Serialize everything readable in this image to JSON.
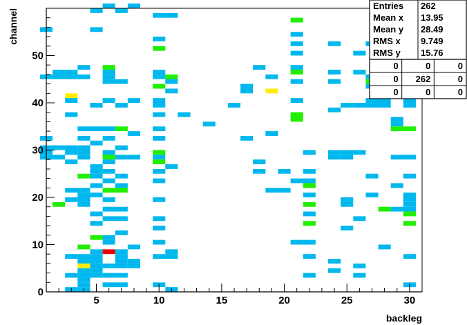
{
  "chart_data": {
    "type": "heatmap",
    "title": "",
    "xlabel": "backleg",
    "ylabel": "channel",
    "xlim": [
      1,
      31
    ],
    "ylim": [
      0,
      60
    ],
    "x_ticks": [
      5,
      10,
      15,
      20,
      25,
      30
    ],
    "y_ticks": [
      0,
      10,
      20,
      30,
      40,
      50
    ],
    "bin_width_x": 1,
    "bin_height_y": 1,
    "colors": {
      "low": "#00b8ee",
      "mid": "#22ee00",
      "high": "#ffee00",
      "max": "#ee0000"
    },
    "stats": {
      "entries_label": "Entries",
      "entries_value": "262",
      "rows": [
        {
          "label": "Mean x",
          "value": "13.95"
        },
        {
          "label": "Mean y",
          "value": "28.49"
        },
        {
          "label": "RMS x",
          "value": "9.749"
        },
        {
          "label": "RMS y",
          "value": "15.76"
        }
      ],
      "grid": [
        [
          "0",
          "0",
          "0"
        ],
        [
          "0",
          "262",
          "0"
        ],
        [
          "0",
          "0",
          "0"
        ]
      ]
    },
    "cells": [
      [
        1,
        32,
        "low"
      ],
      [
        1,
        30,
        "low"
      ],
      [
        1,
        29,
        "low"
      ],
      [
        1,
        28,
        "low"
      ],
      [
        1,
        45,
        "low"
      ],
      [
        1,
        55,
        "low"
      ],
      [
        2,
        46,
        "low"
      ],
      [
        2,
        45,
        "low"
      ],
      [
        2,
        30,
        "low"
      ],
      [
        2,
        28,
        "low"
      ],
      [
        2,
        18,
        "mid"
      ],
      [
        3,
        46,
        "low"
      ],
      [
        3,
        45,
        "low"
      ],
      [
        3,
        41,
        "high"
      ],
      [
        3,
        40,
        "low"
      ],
      [
        3,
        37,
        "low"
      ],
      [
        3,
        30,
        "low"
      ],
      [
        3,
        29,
        "low"
      ],
      [
        3,
        27,
        "low"
      ],
      [
        3,
        21,
        "low"
      ],
      [
        3,
        19,
        "low"
      ],
      [
        3,
        7,
        "low"
      ],
      [
        3,
        3,
        "low"
      ],
      [
        3,
        0,
        "low"
      ],
      [
        4,
        47,
        "low"
      ],
      [
        4,
        45,
        "low"
      ],
      [
        4,
        34,
        "low"
      ],
      [
        4,
        32,
        "low"
      ],
      [
        4,
        30,
        "low"
      ],
      [
        4,
        29,
        "low"
      ],
      [
        4,
        28,
        "low"
      ],
      [
        4,
        24,
        "mid"
      ],
      [
        4,
        21,
        "low"
      ],
      [
        4,
        20,
        "low"
      ],
      [
        4,
        19,
        "low"
      ],
      [
        4,
        18,
        "low"
      ],
      [
        4,
        9,
        "mid"
      ],
      [
        4,
        7,
        "low"
      ],
      [
        4,
        6,
        "low"
      ],
      [
        4,
        5,
        "high"
      ],
      [
        4,
        4,
        "low"
      ],
      [
        4,
        3,
        "low"
      ],
      [
        4,
        2,
        "low"
      ],
      [
        4,
        1,
        "low"
      ],
      [
        4,
        0,
        "low"
      ],
      [
        5,
        59,
        "low"
      ],
      [
        5,
        55,
        "low"
      ],
      [
        5,
        39,
        "low"
      ],
      [
        5,
        34,
        "low"
      ],
      [
        5,
        31,
        "low"
      ],
      [
        5,
        26,
        "low"
      ],
      [
        5,
        25,
        "low"
      ],
      [
        5,
        24,
        "low"
      ],
      [
        5,
        22,
        "low"
      ],
      [
        5,
        20,
        "low"
      ],
      [
        5,
        16,
        "low"
      ],
      [
        5,
        14,
        "low"
      ],
      [
        5,
        11,
        "mid"
      ],
      [
        5,
        8,
        "low"
      ],
      [
        5,
        7,
        "low"
      ],
      [
        5,
        6,
        "low"
      ],
      [
        5,
        5,
        "low"
      ],
      [
        5,
        4,
        "low"
      ],
      [
        5,
        3,
        "low"
      ],
      [
        6,
        60,
        "low"
      ],
      [
        6,
        47,
        "mid"
      ],
      [
        6,
        46,
        "low"
      ],
      [
        6,
        45,
        "low"
      ],
      [
        6,
        44,
        "low"
      ],
      [
        6,
        40,
        "low"
      ],
      [
        6,
        34,
        "low"
      ],
      [
        6,
        32,
        "low"
      ],
      [
        6,
        29,
        "low"
      ],
      [
        6,
        28,
        "mid"
      ],
      [
        6,
        27,
        "low"
      ],
      [
        6,
        25,
        "low"
      ],
      [
        6,
        23,
        "low"
      ],
      [
        6,
        21,
        "mid"
      ],
      [
        6,
        19,
        "low"
      ],
      [
        6,
        17,
        "low"
      ],
      [
        6,
        15,
        "low"
      ],
      [
        6,
        11,
        "low"
      ],
      [
        6,
        10,
        "low"
      ],
      [
        6,
        8,
        "max"
      ],
      [
        6,
        5,
        "low"
      ],
      [
        6,
        3,
        "low"
      ],
      [
        6,
        1,
        "low"
      ],
      [
        7,
        59,
        "low"
      ],
      [
        7,
        44,
        "low"
      ],
      [
        7,
        39,
        "low"
      ],
      [
        7,
        34,
        "mid"
      ],
      [
        7,
        30,
        "low"
      ],
      [
        7,
        28,
        "low"
      ],
      [
        7,
        24,
        "low"
      ],
      [
        7,
        22,
        "low"
      ],
      [
        7,
        21,
        "mid"
      ],
      [
        7,
        17,
        "low"
      ],
      [
        7,
        15,
        "low"
      ],
      [
        7,
        12,
        "low"
      ],
      [
        7,
        8,
        "low"
      ],
      [
        7,
        7,
        "low"
      ],
      [
        7,
        6,
        "low"
      ],
      [
        7,
        5,
        "low"
      ],
      [
        7,
        3,
        "low"
      ],
      [
        7,
        1,
        "low"
      ],
      [
        8,
        60,
        "low"
      ],
      [
        8,
        40,
        "low"
      ],
      [
        8,
        33,
        "low"
      ],
      [
        8,
        28,
        "low"
      ],
      [
        8,
        9,
        "low"
      ],
      [
        8,
        6,
        "low"
      ],
      [
        8,
        5,
        "low"
      ],
      [
        10,
        58,
        "low"
      ],
      [
        10,
        53,
        "low"
      ],
      [
        10,
        51,
        "mid"
      ],
      [
        10,
        46,
        "low"
      ],
      [
        10,
        45,
        "low"
      ],
      [
        10,
        43,
        "mid"
      ],
      [
        10,
        40,
        "low"
      ],
      [
        10,
        39,
        "low"
      ],
      [
        10,
        37,
        "low"
      ],
      [
        10,
        34,
        "low"
      ],
      [
        10,
        32,
        "low"
      ],
      [
        10,
        29,
        "mid"
      ],
      [
        10,
        28,
        "low"
      ],
      [
        10,
        27,
        "mid"
      ],
      [
        10,
        25,
        "low"
      ],
      [
        10,
        23,
        "low"
      ],
      [
        10,
        19,
        "low"
      ],
      [
        10,
        15,
        "low"
      ],
      [
        10,
        13,
        "low"
      ],
      [
        10,
        10,
        "low"
      ],
      [
        10,
        7,
        "low"
      ],
      [
        10,
        1,
        "low"
      ],
      [
        11,
        58,
        "low"
      ],
      [
        11,
        45,
        "mid"
      ],
      [
        11,
        44,
        "low"
      ],
      [
        11,
        42,
        "low"
      ],
      [
        11,
        26,
        "low"
      ],
      [
        11,
        8,
        "low"
      ],
      [
        11,
        7,
        "low"
      ],
      [
        11,
        0,
        "low"
      ],
      [
        12,
        37,
        "low"
      ],
      [
        14,
        35,
        "low"
      ],
      [
        17,
        43,
        "low"
      ],
      [
        17,
        42,
        "low"
      ],
      [
        17,
        32,
        "low"
      ],
      [
        16,
        39,
        "low"
      ],
      [
        18,
        47,
        "low"
      ],
      [
        18,
        27,
        "low"
      ],
      [
        18,
        25,
        "low"
      ],
      [
        19,
        45,
        "low"
      ],
      [
        19,
        42,
        "high"
      ],
      [
        19,
        33,
        "low"
      ],
      [
        19,
        21,
        "low"
      ],
      [
        20,
        25,
        "low"
      ],
      [
        20,
        21,
        "low"
      ],
      [
        21,
        57,
        "mid"
      ],
      [
        21,
        54,
        "low"
      ],
      [
        21,
        52,
        "low"
      ],
      [
        21,
        50,
        "low"
      ],
      [
        21,
        47,
        "low"
      ],
      [
        21,
        46,
        "mid"
      ],
      [
        21,
        44,
        "low"
      ],
      [
        21,
        40,
        "low"
      ],
      [
        21,
        37,
        "mid"
      ],
      [
        21,
        36,
        "mid"
      ],
      [
        21,
        23,
        "low"
      ],
      [
        21,
        10,
        "low"
      ],
      [
        22,
        29,
        "low"
      ],
      [
        22,
        25,
        "low"
      ],
      [
        22,
        23,
        "low"
      ],
      [
        22,
        22,
        "mid"
      ],
      [
        22,
        20,
        "low"
      ],
      [
        22,
        18,
        "mid"
      ],
      [
        22,
        16,
        "low"
      ],
      [
        22,
        14,
        "mid"
      ],
      [
        22,
        10,
        "low"
      ],
      [
        22,
        7,
        "low"
      ],
      [
        22,
        3,
        "low"
      ],
      [
        24,
        52,
        "low"
      ],
      [
        24,
        46,
        "low"
      ],
      [
        24,
        44,
        "low"
      ],
      [
        24,
        38,
        "low"
      ],
      [
        24,
        29,
        "low"
      ],
      [
        24,
        28,
        "low"
      ],
      [
        24,
        6,
        "low"
      ],
      [
        24,
        4,
        "low"
      ],
      [
        25,
        39,
        "low"
      ],
      [
        25,
        29,
        "low"
      ],
      [
        25,
        28,
        "low"
      ],
      [
        25,
        19,
        "low"
      ],
      [
        25,
        18,
        "low"
      ],
      [
        25,
        13,
        "low"
      ],
      [
        26,
        50,
        "low"
      ],
      [
        26,
        46,
        "low"
      ],
      [
        26,
        39,
        "low"
      ],
      [
        26,
        29,
        "low"
      ],
      [
        26,
        15,
        "low"
      ],
      [
        26,
        5,
        "low"
      ],
      [
        26,
        3,
        "low"
      ],
      [
        27,
        52,
        "low"
      ],
      [
        27,
        45,
        "low"
      ],
      [
        27,
        44,
        "mid"
      ],
      [
        27,
        43,
        "low"
      ],
      [
        27,
        40,
        "low"
      ],
      [
        27,
        39,
        "low"
      ],
      [
        27,
        24,
        "low"
      ],
      [
        27,
        20,
        "low"
      ],
      [
        28,
        53,
        "low"
      ],
      [
        28,
        52,
        "low"
      ],
      [
        28,
        51,
        "low"
      ],
      [
        28,
        44,
        "low"
      ],
      [
        28,
        41,
        "low"
      ],
      [
        28,
        40,
        "low"
      ],
      [
        28,
        39,
        "low"
      ],
      [
        28,
        17,
        "mid"
      ],
      [
        28,
        9,
        "low"
      ],
      [
        29,
        43,
        "mid"
      ],
      [
        29,
        36,
        "low"
      ],
      [
        29,
        35,
        "low"
      ],
      [
        29,
        34,
        "mid"
      ],
      [
        29,
        28,
        "low"
      ],
      [
        29,
        22,
        "low"
      ],
      [
        29,
        17,
        "low"
      ],
      [
        30,
        55,
        "low"
      ],
      [
        30,
        53,
        "low"
      ],
      [
        30,
        52,
        "low"
      ],
      [
        30,
        40,
        "low"
      ],
      [
        30,
        39,
        "low"
      ],
      [
        30,
        34,
        "mid"
      ],
      [
        30,
        28,
        "low"
      ],
      [
        30,
        24,
        "low"
      ],
      [
        30,
        20,
        "low"
      ],
      [
        30,
        19,
        "low"
      ],
      [
        30,
        18,
        "low"
      ],
      [
        30,
        17,
        "low"
      ],
      [
        30,
        16,
        "mid"
      ],
      [
        30,
        14,
        "mid"
      ],
      [
        30,
        7,
        "low"
      ],
      [
        30,
        1,
        "low"
      ]
    ]
  }
}
